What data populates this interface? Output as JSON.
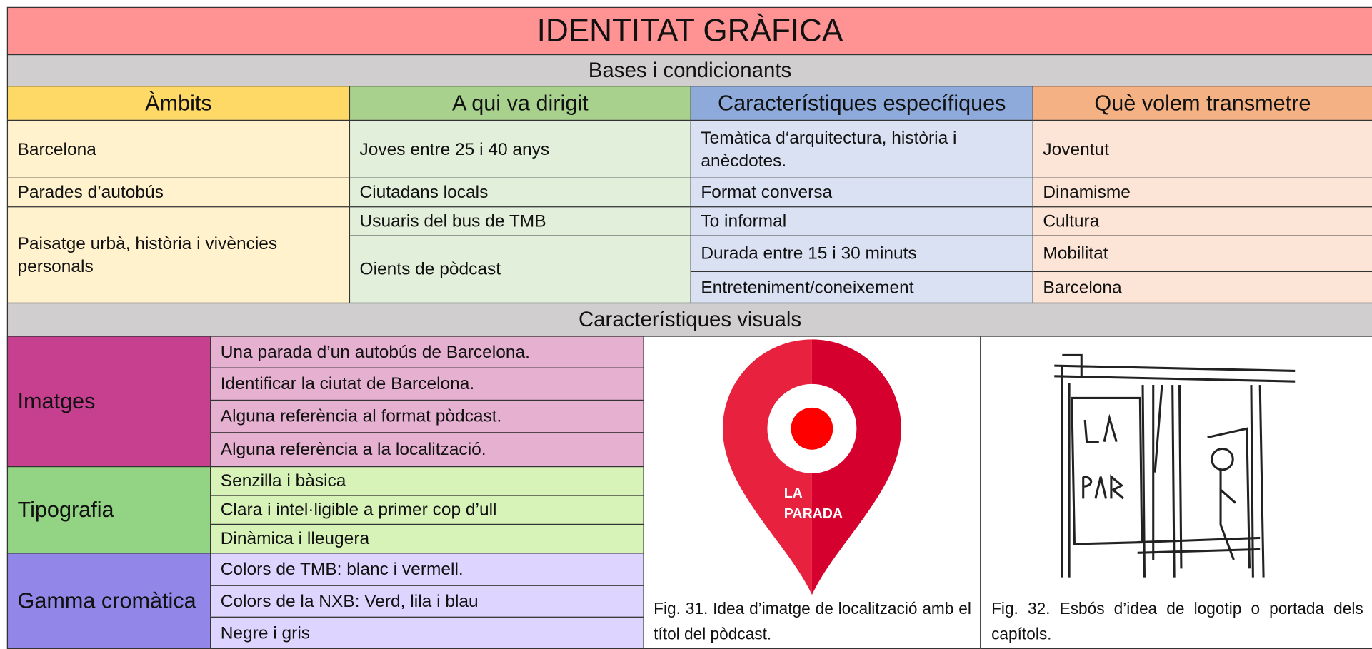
{
  "title": "IDENTITAT GRÀFICA",
  "bases": {
    "title": "Bases i condicionants",
    "headers": [
      "Àmbits",
      "A qui va dirigit",
      "Característiques específiques",
      "Què volem transmetre"
    ],
    "columns": [
      [
        "Barcelona",
        "Parades d’autobús",
        "Paisatge urbà, història i vivències personals"
      ],
      [
        "Joves entre 25 i 40 anys",
        "Ciutadans locals",
        "Usuaris del bus de TMB",
        "Oients de pòdcast"
      ],
      [
        "Temàtica d‘arquitectura, història i anècdotes.",
        "Format conversa",
        "To informal",
        "Durada entre 15 i 30 minuts",
        "Entreteniment/coneixement"
      ],
      [
        "Joventut",
        "Dinamisme",
        "Cultura",
        "Mobilitat",
        "Barcelona"
      ]
    ]
  },
  "visual": {
    "title": "Característiques visuals",
    "groups": [
      {
        "label": "Imatges",
        "items": [
          "Una parada d’un autobús de Barcelona.",
          "Identificar la ciutat de Barcelona.",
          "Alguna referència al format pòdcast.",
          "Alguna referència a la localització."
        ]
      },
      {
        "label": "Tipografia",
        "items": [
          "Senzilla i bàsica",
          "Clara i intel·ligible a primer cop d’ull",
          "Dinàmica i lleugera"
        ]
      },
      {
        "label": "Gamma cromàtica",
        "items": [
          "Colors de TMB: blanc i vermell.",
          "Colors de la NXB: Verd, lila i blau",
          "Negre i gris"
        ]
      }
    ],
    "figures": [
      {
        "image_text": [
          "LA",
          "PARADA"
        ],
        "caption": "Fig. 31. Idea d’imatge de localització amb el títol del pòdcast."
      },
      {
        "caption": "Fig. 32. Esbós d’idea de logotip o portada dels capítols."
      }
    ]
  }
}
